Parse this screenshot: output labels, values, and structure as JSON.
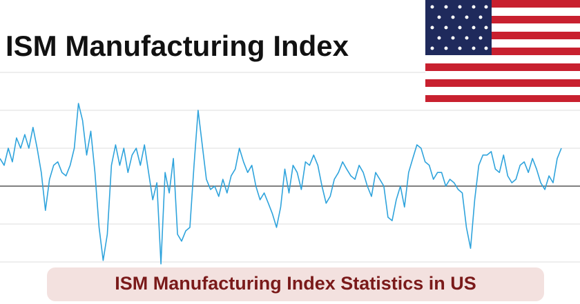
{
  "chart_data": {
    "type": "line",
    "title": "ISM Manufacturing Index",
    "values": [
      57.3,
      55.5,
      60,
      56.4,
      62.7,
      60,
      63.6,
      60,
      65.5,
      60,
      53.6,
      43.6,
      51.8,
      55.5,
      56.4,
      53.6,
      52.7,
      55.5,
      60,
      71.8,
      67.3,
      58.2,
      64.5,
      53.6,
      39.1,
      30.4,
      37.3,
      55.5,
      60.9,
      55.5,
      60,
      53.6,
      58.2,
      60,
      55.5,
      60.9,
      53.6,
      46.4,
      50.9,
      29.5,
      53.6,
      48.2,
      57.3,
      37.3,
      35.5,
      38.2,
      39.1,
      55.5,
      70,
      60.9,
      51.8,
      49.1,
      50,
      47.3,
      51.8,
      48.2,
      52.7,
      54.5,
      60,
      56.4,
      53.6,
      55.5,
      50,
      46.4,
      48.2,
      45.5,
      42.7,
      39.1,
      44.5,
      54.5,
      48.2,
      55.5,
      53.6,
      49.1,
      56.4,
      55.5,
      58.2,
      55.5,
      50,
      45.5,
      47.3,
      51.8,
      53.6,
      56.4,
      54.5,
      52.7,
      51.8,
      55.5,
      53.6,
      50,
      47.3,
      53.6,
      51.8,
      50,
      41.8,
      40.9,
      46.4,
      50,
      44.5,
      53.6,
      57.3,
      60.9,
      60,
      56.4,
      55.5,
      51.8,
      53.6,
      53.6,
      50,
      51.8,
      50.9,
      49.1,
      48.2,
      39.1,
      33.6,
      46.4,
      55.5,
      58.2,
      58.2,
      59.1,
      54.5,
      53.6,
      58.2,
      52.7,
      50.9,
      51.8,
      55.5,
      56.4,
      53.6,
      57.3,
      54.5,
      50.9,
      49.1,
      52.7,
      50.9,
      57.3,
      60
    ],
    "color": "#2ea3dc",
    "ylim": [
      29,
      80
    ],
    "yticks": [
      30,
      40,
      50,
      60,
      70,
      80
    ],
    "grid": true,
    "tick_labels": false,
    "reference_line": 50
  },
  "banner": {
    "text": "ISM Manufacturing Index Statistics in US"
  }
}
